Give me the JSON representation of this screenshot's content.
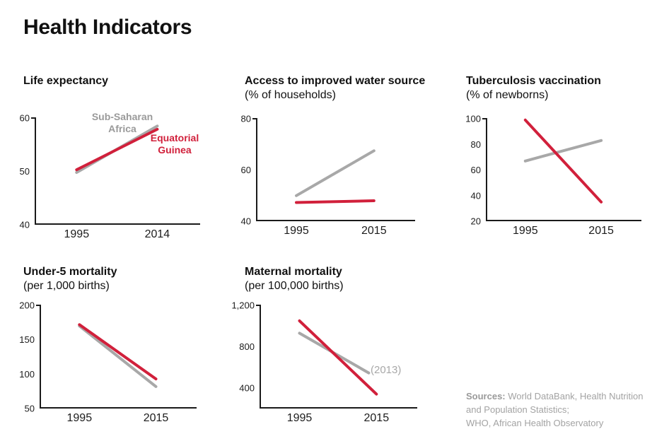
{
  "page": {
    "title": "Health Indicators"
  },
  "colors": {
    "red": "#d1203b",
    "gray_line": "#a8a8a8",
    "gray_text": "#9a9a9a",
    "sources_text": "#a3a3a3",
    "axis": "#1a1a1a"
  },
  "chart_data": [
    {
      "id": "life-expectancy",
      "type": "line",
      "title": "Life expectancy",
      "subtitle": "",
      "ylim": [
        40,
        60
      ],
      "yticks": [
        {
          "value": 40,
          "label": "40"
        },
        {
          "value": 50,
          "label": "50"
        },
        {
          "value": 60,
          "label": "60"
        }
      ],
      "xticks": [
        {
          "value": 1995,
          "label": "1995"
        },
        {
          "value": 2014,
          "label": "2014"
        }
      ],
      "series": [
        {
          "id": "sub-saharan-africa",
          "name": "Sub-Saharan Africa",
          "color": "gray_line",
          "x": [
            1995,
            2014
          ],
          "values": [
            49.8,
            58.5
          ]
        },
        {
          "id": "equatorial-guinea",
          "name": "Equatorial Guinea",
          "color": "red",
          "x": [
            1995,
            2014
          ],
          "values": [
            50.3,
            57.9
          ]
        }
      ],
      "legend": {
        "gray": [
          "Sub-Saharan",
          "Africa"
        ],
        "red": [
          "Equatorial",
          "Guinea"
        ]
      }
    },
    {
      "id": "water-source",
      "type": "line",
      "title": "Access to improved water source",
      "subtitle": "(% of households)",
      "ylim": [
        40,
        80
      ],
      "yticks": [
        {
          "value": 40,
          "label": "40"
        },
        {
          "value": 60,
          "label": "60"
        },
        {
          "value": 80,
          "label": "80"
        }
      ],
      "xticks": [
        {
          "value": 1995,
          "label": "1995"
        },
        {
          "value": 2015,
          "label": "2015"
        }
      ],
      "series": [
        {
          "id": "sub-saharan-africa",
          "name": "Sub-Saharan Africa",
          "color": "gray_line",
          "x": [
            1995,
            2015
          ],
          "values": [
            50,
            67.5
          ]
        },
        {
          "id": "equatorial-guinea",
          "name": "Equatorial Guinea",
          "color": "red",
          "x": [
            1995,
            2015
          ],
          "values": [
            47.3,
            48
          ]
        }
      ]
    },
    {
      "id": "tuberculosis-vaccination",
      "type": "line",
      "title": "Tuberculosis vaccination",
      "subtitle": "(% of newborns)",
      "ylim": [
        20,
        100
      ],
      "yticks": [
        {
          "value": 20,
          "label": "20"
        },
        {
          "value": 40,
          "label": "40"
        },
        {
          "value": 60,
          "label": "60"
        },
        {
          "value": 80,
          "label": "80"
        },
        {
          "value": 100,
          "label": "100"
        }
      ],
      "xticks": [
        {
          "value": 1995,
          "label": "1995"
        },
        {
          "value": 2015,
          "label": "2015"
        }
      ],
      "series": [
        {
          "id": "sub-saharan-africa",
          "name": "Sub-Saharan Africa",
          "color": "gray_line",
          "x": [
            1995,
            2015
          ],
          "values": [
            67,
            83
          ]
        },
        {
          "id": "equatorial-guinea",
          "name": "Equatorial Guinea",
          "color": "red",
          "x": [
            1995,
            2015
          ],
          "values": [
            99,
            35
          ]
        }
      ]
    },
    {
      "id": "under-5-mortality",
      "type": "line",
      "title": "Under-5 mortality",
      "subtitle": "(per 1,000 births)",
      "ylim": [
        50,
        200
      ],
      "yticks": [
        {
          "value": 50,
          "label": "50"
        },
        {
          "value": 100,
          "label": "100"
        },
        {
          "value": 150,
          "label": "150"
        },
        {
          "value": 200,
          "label": "200"
        }
      ],
      "xticks": [
        {
          "value": 1995,
          "label": "1995"
        },
        {
          "value": 2015,
          "label": "2015"
        }
      ],
      "series": [
        {
          "id": "sub-saharan-africa",
          "name": "Sub-Saharan Africa",
          "color": "gray_line",
          "x": [
            1995,
            2015
          ],
          "values": [
            170,
            82
          ]
        },
        {
          "id": "equatorial-guinea",
          "name": "Equatorial Guinea",
          "color": "red",
          "x": [
            1995,
            2015
          ],
          "values": [
            172,
            93
          ]
        }
      ]
    },
    {
      "id": "maternal-mortality",
      "type": "line",
      "title": "Maternal mortality",
      "subtitle": "(per 100,000 births)",
      "ylim": [
        200,
        1200
      ],
      "yticks": [
        {
          "value": 400,
          "label": "400"
        },
        {
          "value": 800,
          "label": "800"
        },
        {
          "value": 1200,
          "label": "1,200"
        }
      ],
      "xticks": [
        {
          "value": 1995,
          "label": "1995"
        },
        {
          "value": 2015,
          "label": "2015"
        }
      ],
      "series": [
        {
          "id": "sub-saharan-africa",
          "name": "Sub-Saharan Africa",
          "color": "gray_line",
          "x": [
            1995,
            2013
          ],
          "values": [
            930,
            545
          ]
        },
        {
          "id": "equatorial-guinea",
          "name": "Equatorial Guinea",
          "color": "red",
          "x": [
            1995,
            2015
          ],
          "values": [
            1050,
            340
          ]
        }
      ],
      "annotation": "(2013)"
    }
  ],
  "sources": {
    "label": "Sources:",
    "lines": [
      "World DataBank, Health Nutrition",
      "and Population Statistics;",
      "WHO, African Health Observatory"
    ]
  }
}
